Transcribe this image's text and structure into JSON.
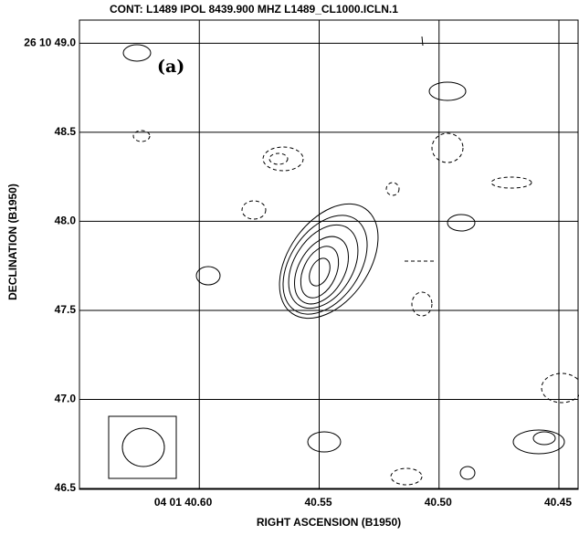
{
  "chart_data": {
    "type": "contour",
    "title": "CONT: L1489    IPOL   8439.900 MHZ   L1489_CL1000.ICLN.1",
    "x_label": "RIGHT ASCENSION (B1950)",
    "y_label": "DECLINATION (B1950)",
    "annotation": "(a)",
    "xlim": [
      40.65,
      40.442
    ],
    "ylim": [
      46.495,
      49.13
    ],
    "xticks": [
      {
        "value": 40.6,
        "label": "04 01 40.60"
      },
      40.55,
      {
        "value": 40.5,
        "label": "40.50"
      },
      40.45
    ],
    "yticks": [
      {
        "value": 49.0,
        "label": "26 10 49.0"
      },
      48.5,
      {
        "value": 48.0,
        "label": "48.0"
      },
      47.5,
      {
        "value": 47.0,
        "label": "47.0"
      },
      46.5
    ],
    "grid": true,
    "color": "#000000"
  }
}
